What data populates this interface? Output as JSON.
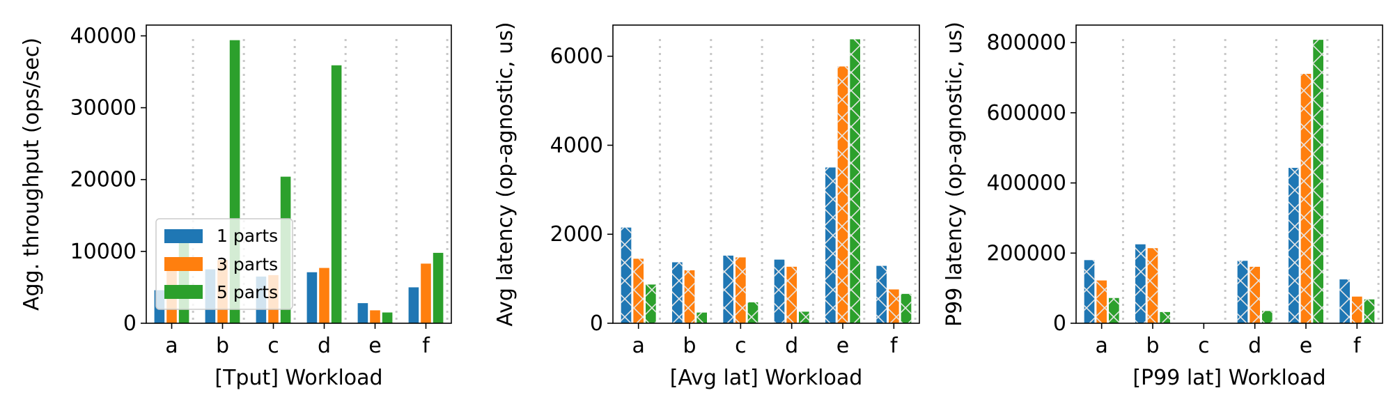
{
  "colors": {
    "s1": "#1f77b4",
    "s2": "#ff7f0e",
    "s3": "#2ca02c",
    "separator": "#c8c8c8",
    "hatch": "#e6e6e6"
  },
  "legend": {
    "entries": [
      {
        "label": "1 parts",
        "color_key": "s1"
      },
      {
        "label": "3 parts",
        "color_key": "s2"
      },
      {
        "label": "5 parts",
        "color_key": "s3"
      }
    ]
  },
  "chart_data": [
    {
      "type": "bar",
      "title": "",
      "xlabel": "[Tput]  Workload",
      "ylabel": "Agg. throughput (ops/sec)",
      "categories": [
        "a",
        "b",
        "c",
        "d",
        "e",
        "f"
      ],
      "ylim": [
        0,
        41500
      ],
      "yticks": [
        0,
        10000,
        20000,
        30000,
        40000
      ],
      "ytick_labels": [
        "0",
        "10000",
        "20000",
        "30000",
        "40000"
      ],
      "hatched": false,
      "grid": false,
      "legend_placement": "lower-left",
      "series": [
        {
          "name": "1 parts",
          "values": [
            4600,
            7500,
            6500,
            7100,
            2800,
            5000
          ]
        },
        {
          "name": "3 parts",
          "values": [
            8000,
            8800,
            6700,
            7700,
            1800,
            8300
          ]
        },
        {
          "name": "5 parts",
          "values": [
            12000,
            39400,
            20400,
            35900,
            1500,
            9800
          ]
        }
      ]
    },
    {
      "type": "bar",
      "title": "",
      "xlabel": "[Avg lat]  Workload",
      "ylabel": "Avg latency (op-agnostic, us)",
      "categories": [
        "a",
        "b",
        "c",
        "d",
        "e",
        "f"
      ],
      "ylim": [
        0,
        6700
      ],
      "yticks": [
        0,
        2000,
        4000,
        6000
      ],
      "ytick_labels": [
        "0",
        "2000",
        "4000",
        "6000"
      ],
      "hatched": true,
      "grid": false,
      "series": [
        {
          "name": "1 parts",
          "values": [
            2150,
            1370,
            1520,
            1430,
            3500,
            1290
          ]
        },
        {
          "name": "3 parts",
          "values": [
            1450,
            1190,
            1480,
            1270,
            5770,
            760
          ]
        },
        {
          "name": "5 parts",
          "values": [
            870,
            240,
            470,
            260,
            6380,
            660
          ]
        }
      ]
    },
    {
      "type": "bar",
      "title": "",
      "xlabel": "[P99 lat]  Workload",
      "ylabel": "P99 latency (op-agnostic, us)",
      "categories": [
        "a",
        "b",
        "c",
        "d",
        "e",
        "f"
      ],
      "ylim": [
        0,
        850000
      ],
      "yticks": [
        0,
        200000,
        400000,
        600000,
        800000
      ],
      "ytick_labels": [
        "0",
        "200000",
        "400000",
        "600000",
        "800000"
      ],
      "hatched": true,
      "grid": false,
      "series": [
        {
          "name": "1 parts",
          "values": [
            180000,
            225000,
            0,
            178000,
            443000,
            125000
          ]
        },
        {
          "name": "3 parts",
          "values": [
            122000,
            214000,
            0,
            161000,
            711000,
            76000
          ]
        },
        {
          "name": "5 parts",
          "values": [
            72000,
            32000,
            0,
            35000,
            808000,
            68000
          ]
        }
      ]
    }
  ]
}
